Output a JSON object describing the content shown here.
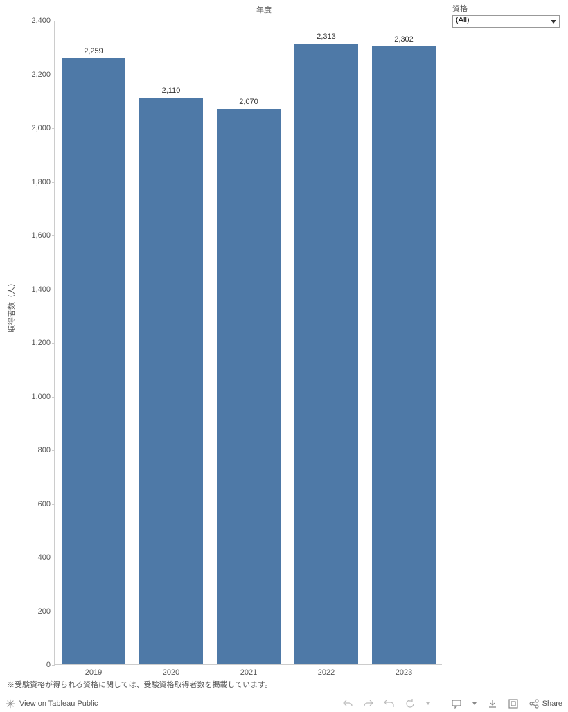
{
  "chart": {
    "type": "bar",
    "title": "年度",
    "yaxis_label": "取得者数（人）",
    "categories": [
      "2019",
      "2020",
      "2021",
      "2022",
      "2023"
    ],
    "values": [
      2259,
      2110,
      2070,
      2313,
      2302
    ],
    "value_labels": [
      "2,259",
      "2,110",
      "2,070",
      "2,313",
      "2,302"
    ],
    "bar_color": "#4e79a7",
    "background_color": "#ffffff",
    "border_color": "#cccccc",
    "text_color": "#555555",
    "ylim": [
      0,
      2400
    ],
    "ytick_step": 200,
    "yticks": [
      "0",
      "200",
      "400",
      "600",
      "800",
      "1,000",
      "1,200",
      "1,400",
      "1,600",
      "1,800",
      "2,000",
      "2,200",
      "2,400"
    ],
    "bar_width_ratio": 0.82,
    "label_fontsize": 11
  },
  "filter": {
    "label": "資格",
    "selected": "(All)"
  },
  "footnote": "※受験資格が得られる資格に関しては、受験資格取得者数を掲載しています。",
  "toolbar": {
    "view_text": "View on Tableau Public",
    "share_text": "Share"
  }
}
